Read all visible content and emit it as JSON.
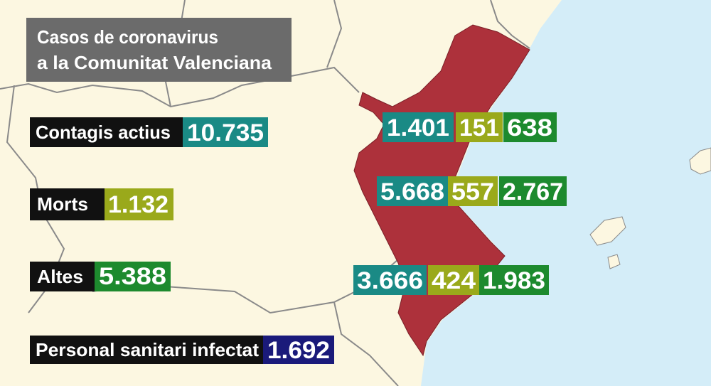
{
  "title": [
    "Casos de coronavirus",
    "a la Comunitat Valenciana"
  ],
  "stats": [
    {
      "label": "Contagis actius",
      "value": "10.735"
    },
    {
      "label": "Morts",
      "value": "1.132"
    },
    {
      "label": "Altes",
      "value": "5.388"
    },
    {
      "label": "Personal sanitari infectat",
      "value": "1.692"
    }
  ],
  "provinces": [
    [
      "1.401",
      "151",
      "638"
    ],
    [
      "5.668",
      "557",
      "2.767"
    ],
    [
      "3.666",
      "424",
      "1.983"
    ]
  ]
}
